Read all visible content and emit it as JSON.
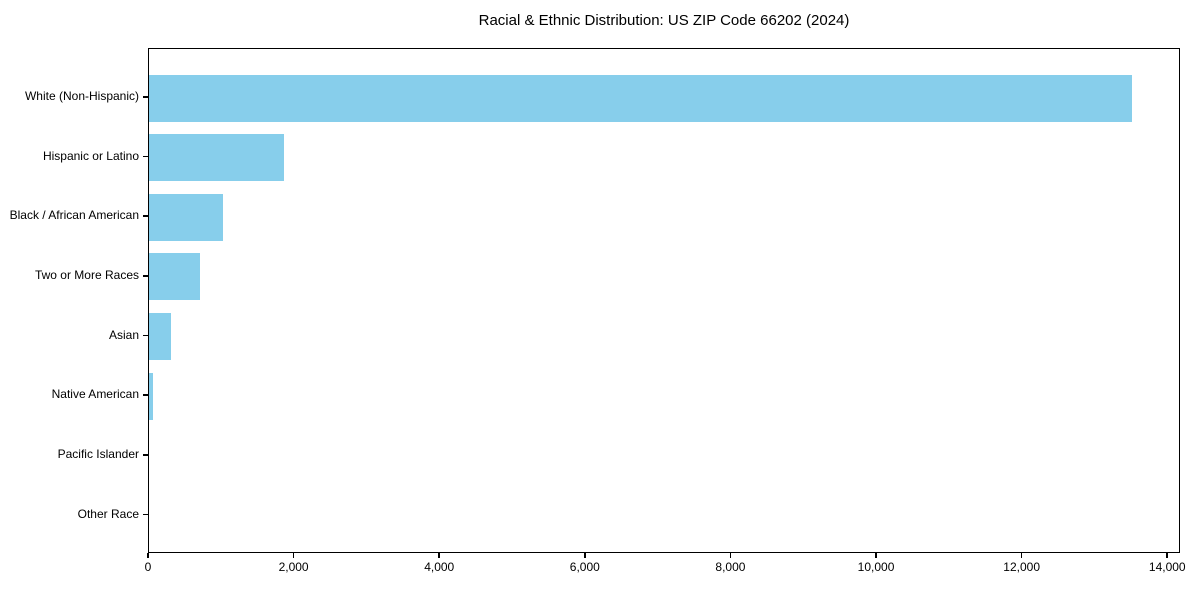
{
  "title": "Racial & Ethnic Distribution: US ZIP Code 66202 (2024)",
  "colors": {
    "bar": "#87CEEB",
    "axis": "#000000",
    "background": "#FFFFFF",
    "text": "#000000"
  },
  "chart_data": {
    "type": "bar",
    "orientation": "horizontal",
    "title": "Racial & Ethnic Distribution: US ZIP Code 66202 (2024)",
    "categories": [
      "White (Non-Hispanic)",
      "Hispanic or Latino",
      "Black / African American",
      "Two or More Races",
      "Asian",
      "Native American",
      "Pacific Islander",
      "Other Race"
    ],
    "values": [
      13500,
      1850,
      1020,
      700,
      300,
      50,
      0,
      0
    ],
    "xlabel": "",
    "ylabel": "",
    "xlim": [
      0,
      14175
    ],
    "xticks": [
      0,
      2000,
      4000,
      6000,
      8000,
      10000,
      12000,
      14000
    ],
    "xtick_labels": [
      "0",
      "2,000",
      "4,000",
      "6,000",
      "8,000",
      "10,000",
      "12,000",
      "14,000"
    ],
    "bar_color": "#87CEEB",
    "grid": false,
    "legend": null
  }
}
